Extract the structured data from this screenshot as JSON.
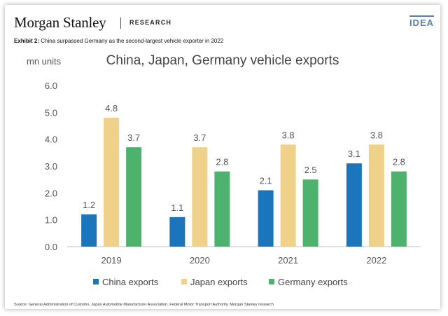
{
  "header": {
    "brand": "Morgan Stanley",
    "section": "RESEARCH",
    "badge": "IDEA"
  },
  "exhibit": {
    "label": "Exhibit 2:",
    "caption": "China surpassed Germany as the second-largest vehicle exporter in 2022"
  },
  "source": "Source: General Administration of Customs, Japan Automobile Manufacturer Association, Federal Motor Transport Authority, Morgan Stanley research",
  "chart_data": {
    "type": "bar",
    "title": "China, Japan, Germany vehicle exports",
    "ylabel": "mn units",
    "xlabel": "",
    "categories": [
      "2019",
      "2020",
      "2021",
      "2022"
    ],
    "ylim": [
      0,
      6
    ],
    "yticks": [
      "0.0",
      "1.0",
      "2.0",
      "3.0",
      "4.0",
      "5.0",
      "6.0"
    ],
    "grid": false,
    "legend_position": "bottom",
    "series": [
      {
        "name": "China exports",
        "color": "#1b75bb",
        "values": [
          1.2,
          1.1,
          2.1,
          3.1
        ],
        "labels": [
          "1.2",
          "1.1",
          "2.1",
          "3.1"
        ]
      },
      {
        "name": "Japan exports",
        "color": "#f0d18a",
        "values": [
          4.8,
          3.7,
          3.8,
          3.8
        ],
        "labels": [
          "4.8",
          "3.7",
          "3.8",
          "3.8"
        ]
      },
      {
        "name": "Germany exports",
        "color": "#4db26e",
        "values": [
          3.7,
          2.8,
          2.5,
          2.8
        ],
        "labels": [
          "3.7",
          "2.8",
          "2.5",
          "2.8"
        ]
      }
    ]
  }
}
